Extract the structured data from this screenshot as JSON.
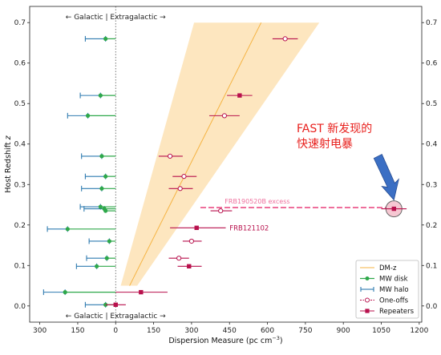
{
  "chart_data": {
    "type": "scatter",
    "xlabel": "Dispersion Measure (pc cm",
    "xlabel_sup": "−3",
    "xlabel_close": ")",
    "ylabel": "Host Redshift ",
    "ylabel_italic": "z",
    "xlim": [
      -340,
      1210
    ],
    "ylim": [
      -0.04,
      0.74
    ],
    "x_ticks": [
      {
        "value": -300,
        "label": "300"
      },
      {
        "value": -150,
        "label": "150"
      },
      {
        "value": 0,
        "label": "0"
      },
      {
        "value": 150,
        "label": "150"
      },
      {
        "value": 300,
        "label": "300"
      },
      {
        "value": 450,
        "label": "450"
      },
      {
        "value": 600,
        "label": "600"
      },
      {
        "value": 750,
        "label": "750"
      },
      {
        "value": 900,
        "label": "900"
      },
      {
        "value": 1050,
        "label": "1050"
      },
      {
        "value": 1200,
        "label": "1200"
      }
    ],
    "y_ticks": [
      {
        "value": 0.0,
        "label": "0.0"
      },
      {
        "value": 0.1,
        "label": "0.1"
      },
      {
        "value": 0.2,
        "label": "0.2"
      },
      {
        "value": 0.3,
        "label": "0.3"
      },
      {
        "value": 0.4,
        "label": "0.4"
      },
      {
        "value": 0.5,
        "label": "0.5"
      },
      {
        "value": 0.6,
        "label": "0.6"
      },
      {
        "value": 0.7,
        "label": "0.7"
      }
    ],
    "galactic_label_top": "← Galactic | Extragalactic →",
    "galactic_label_bottom": "← Galactic | Extragalactic →",
    "dmz_band": {
      "line": [
        [
          55,
          0.05
        ],
        [
          575,
          0.7
        ]
      ],
      "lower": [
        [
          20,
          0.05
        ],
        [
          310,
          0.7
        ]
      ],
      "upper": [
        [
          85,
          0.05
        ],
        [
          805,
          0.7
        ]
      ]
    },
    "mw_disk": [
      {
        "y": 0.66,
        "disk": -40
      },
      {
        "y": 0.52,
        "disk": -60
      },
      {
        "y": 0.47,
        "disk": -110
      },
      {
        "y": 0.37,
        "disk": -55
      },
      {
        "y": 0.32,
        "disk": -40
      },
      {
        "y": 0.29,
        "disk": -55
      },
      {
        "y": 0.245,
        "disk": -60
      },
      {
        "y": 0.24,
        "disk": -45
      },
      {
        "y": 0.235,
        "disk": -40
      },
      {
        "y": 0.19,
        "disk": -190
      },
      {
        "y": 0.16,
        "disk": -25
      },
      {
        "y": 0.118,
        "disk": -35
      },
      {
        "y": 0.098,
        "disk": -75
      },
      {
        "y": 0.034,
        "disk": -200
      },
      {
        "y": 0.003,
        "disk": -40
      }
    ],
    "mw_halo": [
      {
        "y": 0.66,
        "lo": -120,
        "hi": -40
      },
      {
        "y": 0.52,
        "lo": -140,
        "hi": -60
      },
      {
        "y": 0.47,
        "lo": -190,
        "hi": -110
      },
      {
        "y": 0.37,
        "lo": -135,
        "hi": -55
      },
      {
        "y": 0.32,
        "lo": -120,
        "hi": -40
      },
      {
        "y": 0.29,
        "lo": -135,
        "hi": -55
      },
      {
        "y": 0.245,
        "lo": -140,
        "hi": -60
      },
      {
        "y": 0.24,
        "lo": -125,
        "hi": -45
      },
      {
        "y": 0.19,
        "lo": -270,
        "hi": -190
      },
      {
        "y": 0.16,
        "lo": -105,
        "hi": -25
      },
      {
        "y": 0.118,
        "lo": -115,
        "hi": -35
      },
      {
        "y": 0.098,
        "lo": -155,
        "hi": -75
      },
      {
        "y": 0.034,
        "lo": -285,
        "hi": -200
      },
      {
        "y": 0.003,
        "lo": -120,
        "hi": -40
      }
    ],
    "one_offs": [
      {
        "y": 0.66,
        "dm": 670,
        "lo": 620,
        "hi": 720
      },
      {
        "y": 0.47,
        "dm": 430,
        "lo": 370,
        "hi": 490
      },
      {
        "y": 0.37,
        "dm": 215,
        "lo": 170,
        "hi": 265
      },
      {
        "y": 0.32,
        "dm": 270,
        "lo": 225,
        "hi": 320
      },
      {
        "y": 0.29,
        "dm": 255,
        "lo": 210,
        "hi": 305
      },
      {
        "y": 0.235,
        "dm": 415,
        "lo": 375,
        "hi": 460
      },
      {
        "y": 0.16,
        "dm": 300,
        "lo": 265,
        "hi": 340
      },
      {
        "y": 0.118,
        "dm": 250,
        "lo": 210,
        "hi": 290
      }
    ],
    "repeaters": [
      {
        "y": 0.52,
        "dm": 490,
        "lo": 440,
        "hi": 540
      },
      {
        "y": 0.24,
        "dm": 1100,
        "lo": 1050,
        "hi": 1150
      },
      {
        "y": 0.193,
        "dm": 320,
        "lo": 215,
        "hi": 435
      },
      {
        "y": 0.098,
        "dm": 290,
        "lo": 245,
        "hi": 340
      },
      {
        "y": 0.034,
        "dm": 100,
        "lo": 0,
        "hi": 205
      },
      {
        "y": 0.003,
        "dm": 0,
        "lo": -40,
        "hi": 40
      }
    ],
    "excess_line": {
      "y": 0.243,
      "x_start": 335,
      "x_end": 1100
    },
    "excess_label": "FRB190520B excess",
    "frb121102_label": "FRB121102",
    "fast_label_line1": "FAST 新发现的",
    "fast_label_line2": "快速射电暴",
    "legend": [
      {
        "key": "dmz",
        "label": "DM-z"
      },
      {
        "key": "disk",
        "label": "MW disk"
      },
      {
        "key": "halo",
        "label": "MW halo"
      },
      {
        "key": "oneoff",
        "label": "One-offs"
      },
      {
        "key": "repeater",
        "label": "Repeaters"
      }
    ],
    "colors": {
      "band": "#fde3b8",
      "band_line": "#f5b342",
      "disk": "#2ea84a",
      "halo": "#2f7bb0",
      "frb": "#b8114d",
      "excess": "#ee6f9c",
      "fast_text": "#e8201d",
      "arrow": "#3b6fc4",
      "circle_fill": "#f6c7d2"
    }
  }
}
